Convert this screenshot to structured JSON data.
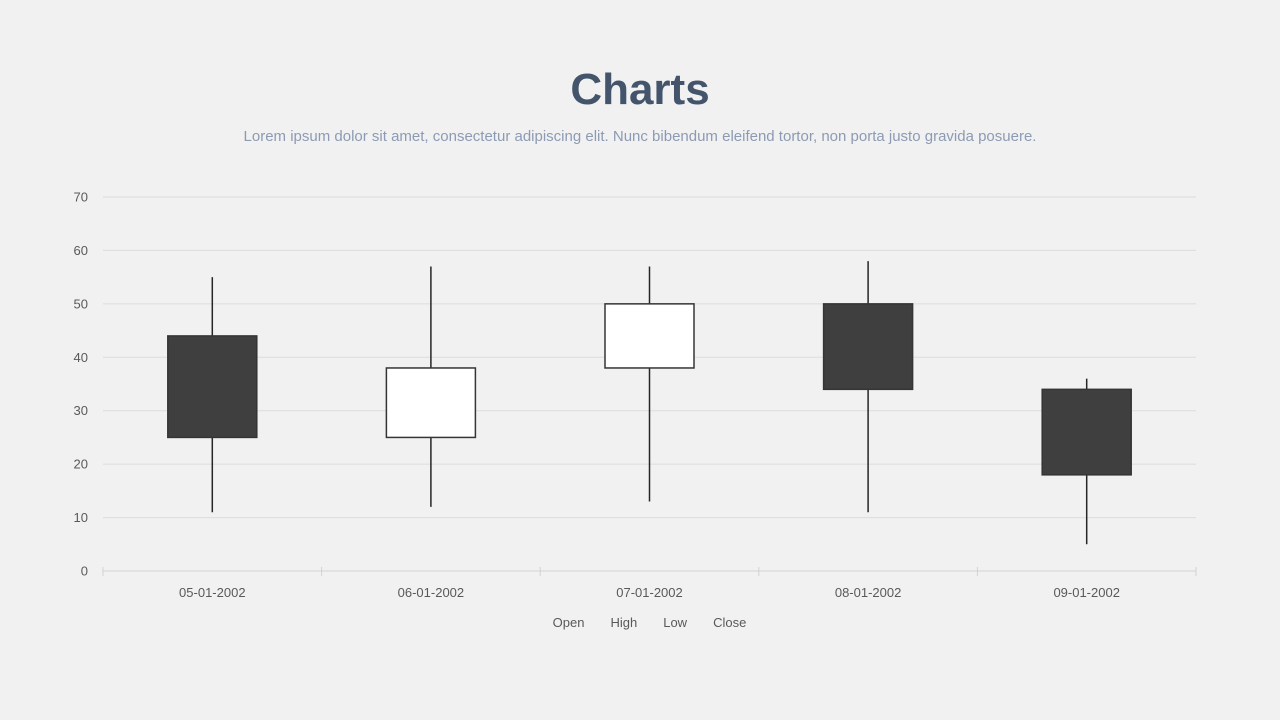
{
  "header": {
    "title": "Charts",
    "subtitle": "Lorem ipsum dolor sit amet, consectetur adipiscing elit. Nunc bibendum eleifend tortor, non porta justo gravida posuere."
  },
  "chart_data": {
    "type": "candlestick",
    "title": "Charts",
    "categories": [
      "05-01-2002",
      "06-01-2002",
      "07-01-2002",
      "08-01-2002",
      "09-01-2002"
    ],
    "series": [
      {
        "name": "Open",
        "values": [
          44,
          25,
          38,
          50,
          34
        ]
      },
      {
        "name": "High",
        "values": [
          55,
          57,
          57,
          58,
          36
        ]
      },
      {
        "name": "Low",
        "values": [
          11,
          12,
          13,
          11,
          5
        ]
      },
      {
        "name": "Close",
        "values": [
          25,
          38,
          50,
          34,
          18
        ]
      }
    ],
    "xlabel": "",
    "ylabel": "",
    "ylim": [
      0,
      70
    ],
    "ytick_step": 10,
    "grid": true,
    "legend": [
      "Open",
      "High",
      "Low",
      "Close"
    ],
    "legend_position": "bottom",
    "colors": {
      "up_fill": "#ffffff",
      "down_fill": "#3f3f3f",
      "body_stroke": "#353535",
      "wick_stroke": "#262626",
      "gridline": "#dcdcdc",
      "axis_line": "#d2d2d2",
      "axis_label": "#595959",
      "title": "#44546a",
      "subtitle": "#8c9bb3",
      "background": "#f1f1f1"
    }
  }
}
